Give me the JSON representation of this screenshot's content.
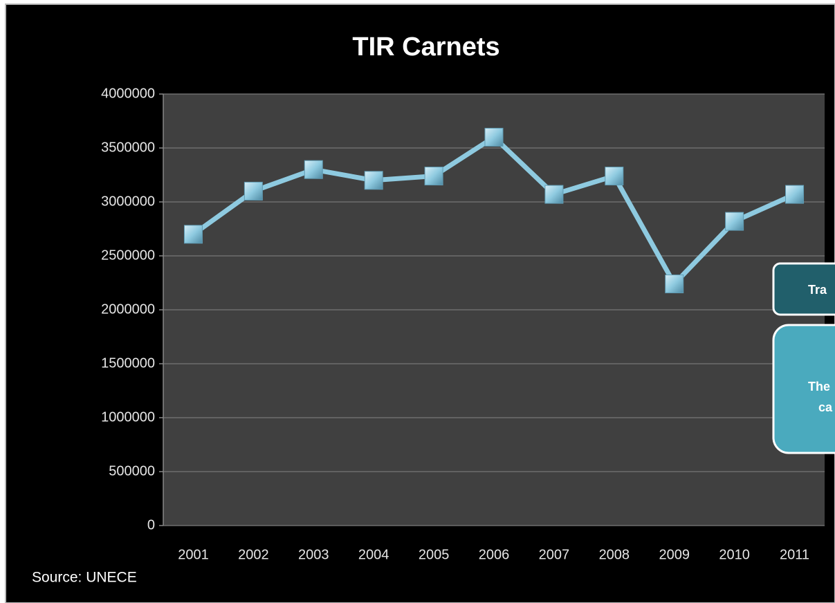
{
  "chart_data": {
    "type": "line",
    "title": "TIR Carnets",
    "categories": [
      "2001",
      "2002",
      "2003",
      "2004",
      "2005",
      "2006",
      "2007",
      "2008",
      "2009",
      "2010",
      "2011"
    ],
    "values": [
      2700000,
      3100000,
      3300000,
      3200000,
      3240000,
      3600000,
      3070000,
      3240000,
      2240000,
      2820000,
      3070000
    ],
    "color": "#8ecae0",
    "ylim": [
      0,
      4000000
    ],
    "yticks": [
      0,
      500000,
      1000000,
      1500000,
      2000000,
      2500000,
      3000000,
      3500000,
      4000000
    ],
    "grid": true,
    "source": "Source: UNECE",
    "annotations": [
      {
        "lines": [
          "Tra"
        ]
      },
      {
        "lines": [
          "The",
          "ca"
        ]
      }
    ]
  }
}
